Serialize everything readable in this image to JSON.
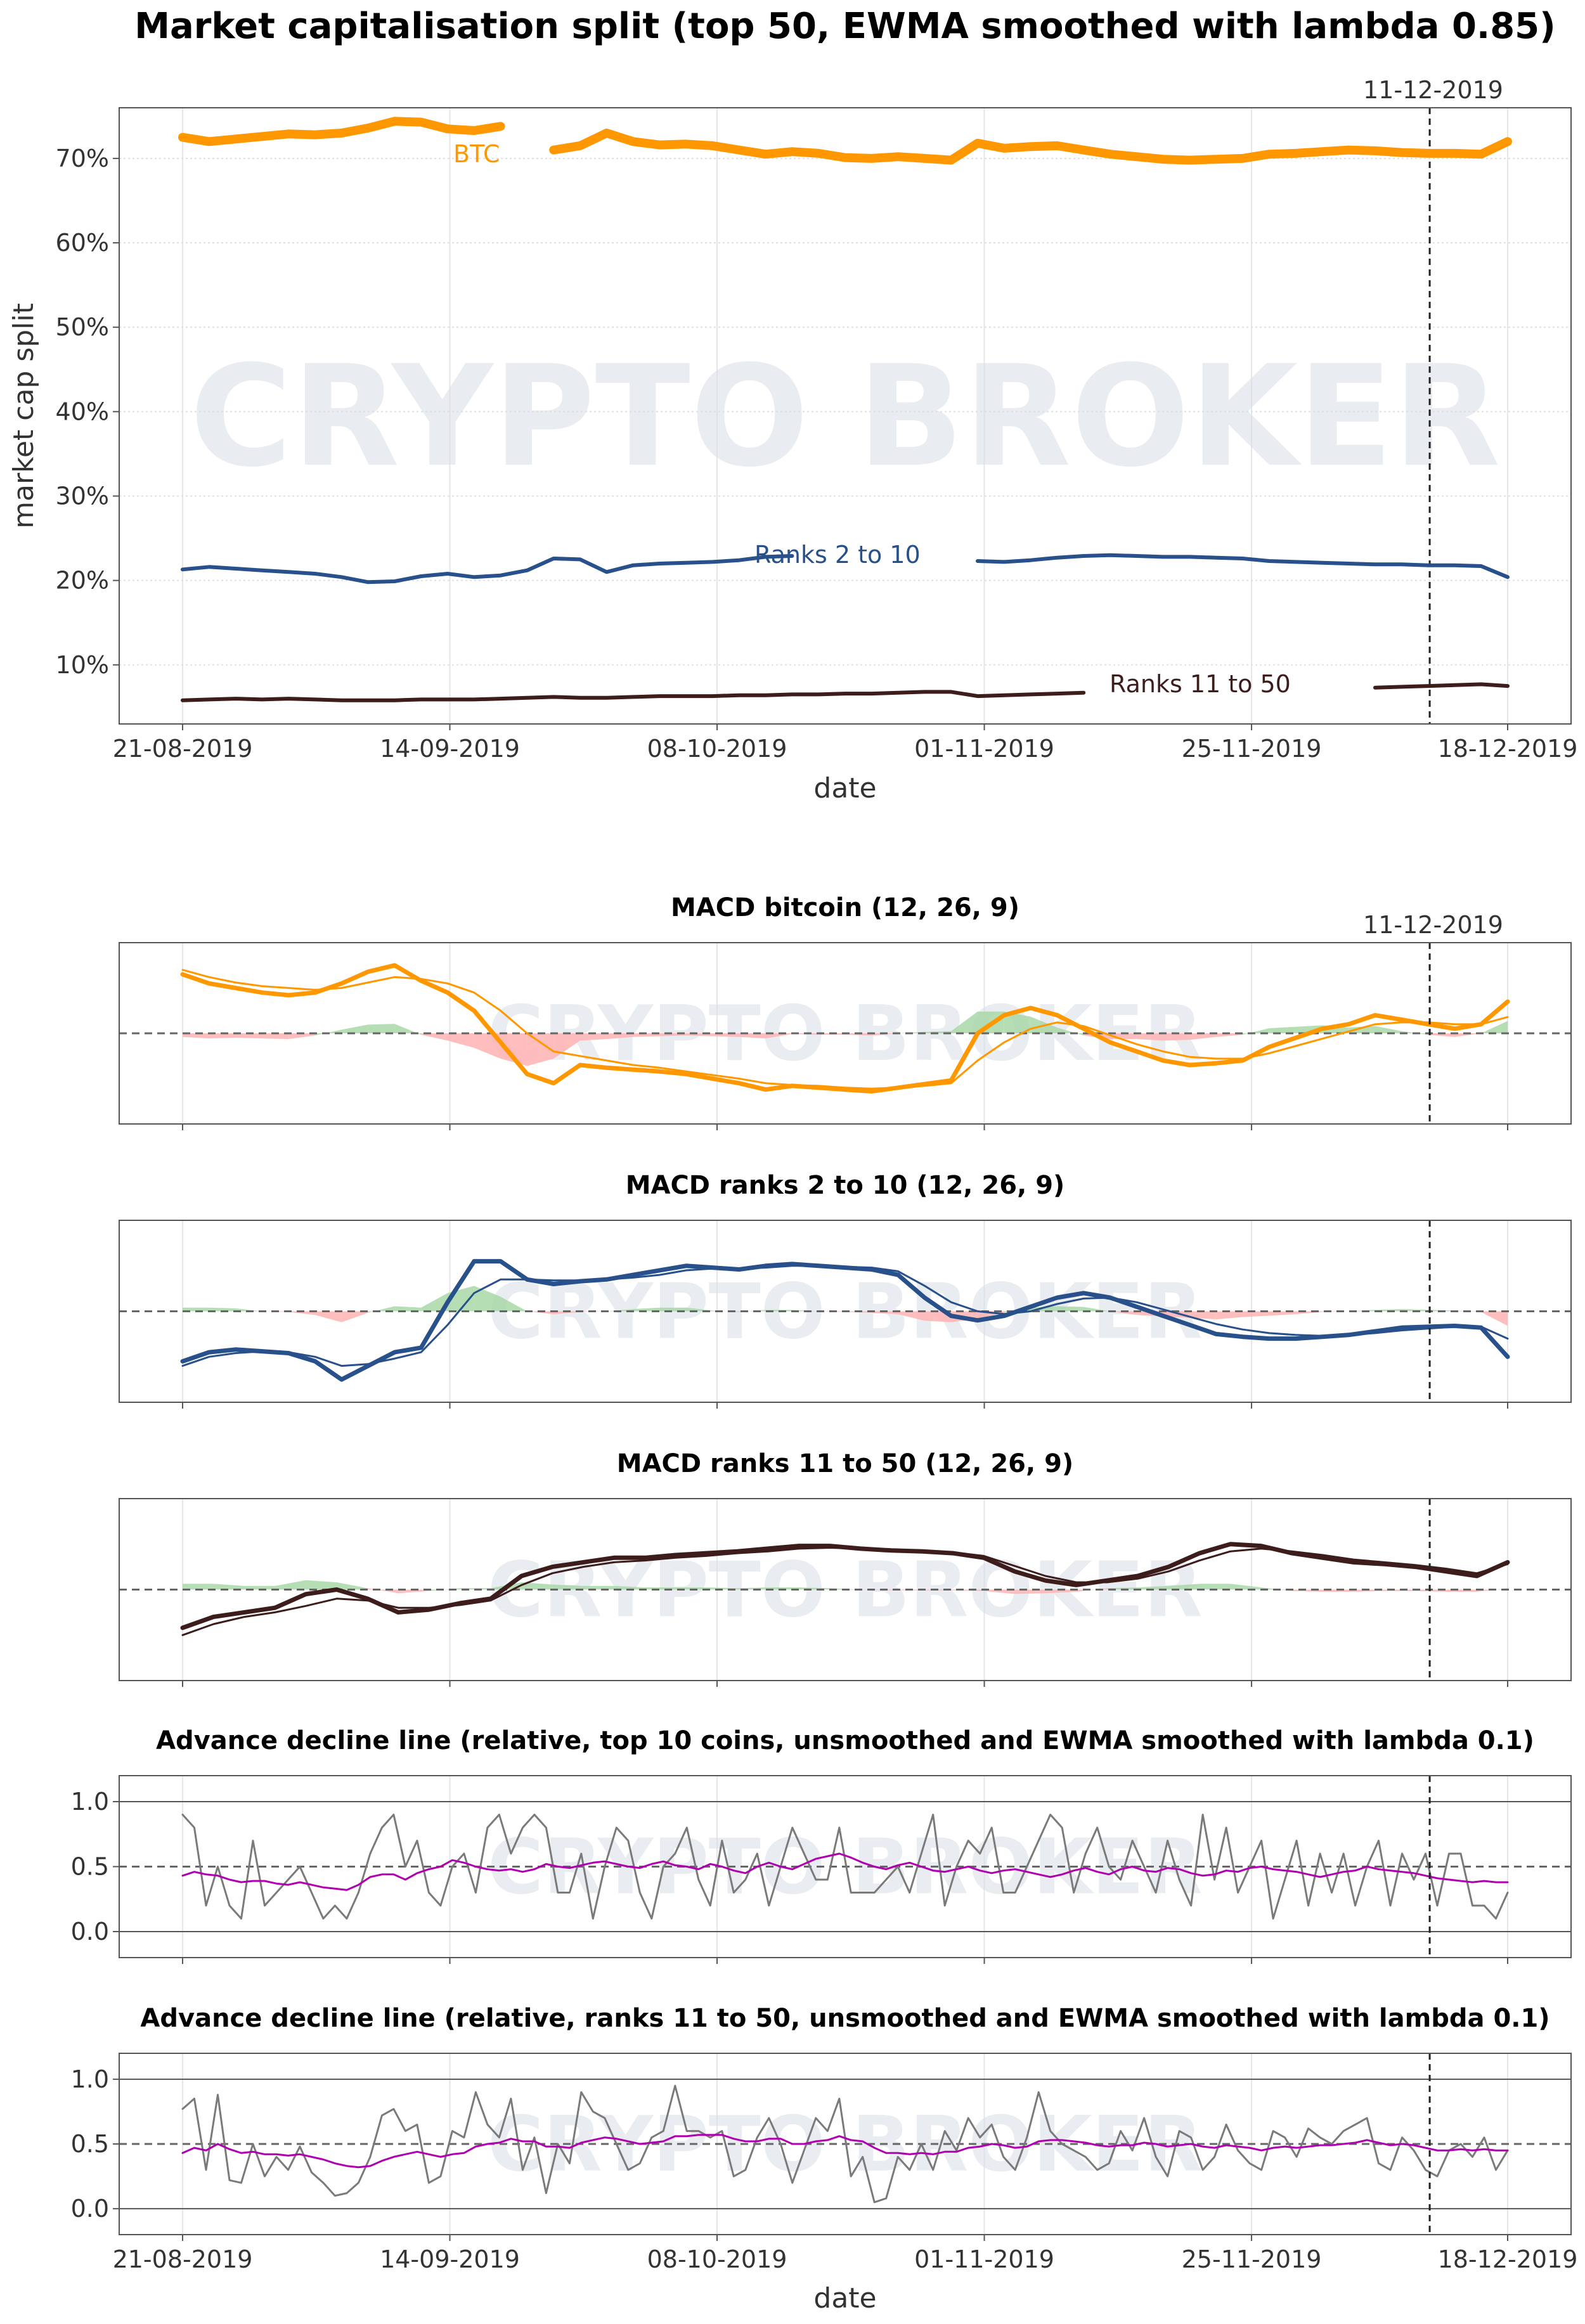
{
  "figure": {
    "watermark": "CRYPTO BROKER",
    "marker_date_label": "11-12-2019",
    "colors": {
      "btc": "#ff9800",
      "ranks_2_10": "#28508a",
      "ranks_11_50": "#3d1c1c",
      "adl_raw": "#7a7a7a",
      "adl_ewma": "#b000b0",
      "hist_pos": "#a8d8a8",
      "hist_neg": "#ffb3b3"
    }
  },
  "chart_data": [
    {
      "type": "line",
      "title": "Market capitalisation split (top 50, EWMA smoothed with lambda 0.85)",
      "xlabel": "date",
      "ylabel": "market cap split",
      "x_start": "21-08-2019",
      "x_end": "18-12-2019",
      "x_ticks": [
        "21-08-2019",
        "14-09-2019",
        "08-10-2019",
        "01-11-2019",
        "25-11-2019",
        "18-12-2019"
      ],
      "y_ticks": [
        "10%",
        "20%",
        "30%",
        "40%",
        "50%",
        "60%",
        "70%"
      ],
      "ylim": [
        3,
        76
      ],
      "marker_date": "11-12-2019",
      "series": [
        {
          "name": "BTC",
          "key": "btc",
          "values": [
            72.5,
            72.0,
            72.3,
            72.6,
            72.9,
            72.8,
            73.0,
            73.6,
            74.4,
            74.3,
            73.5,
            73.3,
            73.8,
            73.4,
            71.0,
            71.5,
            73.0,
            72.0,
            71.6,
            71.7,
            71.5,
            71.0,
            70.5,
            70.8,
            70.6,
            70.1,
            70.0,
            70.2,
            70.0,
            69.8,
            71.8,
            71.2,
            71.4,
            71.5,
            71.0,
            70.5,
            70.2,
            69.9,
            69.8,
            69.9,
            70.0,
            70.5,
            70.6,
            70.8,
            71.0,
            70.9,
            70.7,
            70.6,
            70.6,
            70.5,
            72.0
          ]
        },
        {
          "name": "Ranks 2 to 10",
          "key": "ranks_2_10",
          "values": [
            21.3,
            21.6,
            21.4,
            21.2,
            21.0,
            20.8,
            20.4,
            19.8,
            19.9,
            20.5,
            20.8,
            20.4,
            20.6,
            21.2,
            22.6,
            22.5,
            21.0,
            21.8,
            22.0,
            22.1,
            22.2,
            22.4,
            22.8,
            22.9,
            22.7,
            22.6,
            22.5,
            22.3,
            22.2,
            22.0,
            22.3,
            22.2,
            22.4,
            22.7,
            22.9,
            23.0,
            22.9,
            22.8,
            22.8,
            22.7,
            22.6,
            22.3,
            22.2,
            22.1,
            22.0,
            21.9,
            21.9,
            21.8,
            21.8,
            21.7,
            20.4
          ]
        },
        {
          "name": "Ranks 11 to 50",
          "key": "ranks_11_50",
          "values": [
            5.8,
            5.9,
            6.0,
            5.9,
            6.0,
            5.9,
            5.8,
            5.8,
            5.8,
            5.9,
            5.9,
            5.9,
            6.0,
            6.1,
            6.2,
            6.1,
            6.1,
            6.2,
            6.3,
            6.3,
            6.3,
            6.4,
            6.4,
            6.5,
            6.5,
            6.6,
            6.6,
            6.7,
            6.8,
            6.8,
            6.3,
            6.4,
            6.5,
            6.6,
            6.7,
            6.8,
            6.9,
            7.0,
            7.1,
            7.1,
            7.2,
            7.2,
            7.3,
            7.3,
            7.3,
            7.3,
            7.4,
            7.5,
            7.6,
            7.7,
            7.5
          ]
        }
      ]
    },
    {
      "type": "line",
      "title": "MACD bitcoin (12, 26, 9)",
      "marker_date": "11-12-2019",
      "ylim": [
        -1.0,
        1.0
      ],
      "series": [
        {
          "name": "",
          "role": "macd",
          "values": [
            0.65,
            0.55,
            0.5,
            0.45,
            0.42,
            0.45,
            0.55,
            0.68,
            0.75,
            0.58,
            0.45,
            0.25,
            -0.1,
            -0.45,
            -0.55,
            -0.35,
            -0.38,
            -0.4,
            -0.42,
            -0.45,
            -0.5,
            -0.55,
            -0.62,
            -0.58,
            -0.6,
            -0.62,
            -0.64,
            -0.6,
            -0.56,
            -0.52,
            0.0,
            0.2,
            0.28,
            0.2,
            0.05,
            -0.1,
            -0.2,
            -0.3,
            -0.35,
            -0.33,
            -0.3,
            -0.15,
            -0.05,
            0.05,
            0.1,
            0.2,
            0.15,
            0.1,
            0.05,
            0.1,
            0.35
          ]
        },
        {
          "name": "",
          "role": "signal",
          "values": [
            0.7,
            0.62,
            0.56,
            0.52,
            0.5,
            0.48,
            0.5,
            0.56,
            0.62,
            0.6,
            0.55,
            0.45,
            0.25,
            0.0,
            -0.2,
            -0.25,
            -0.3,
            -0.35,
            -0.38,
            -0.42,
            -0.46,
            -0.5,
            -0.55,
            -0.57,
            -0.58,
            -0.6,
            -0.61,
            -0.6,
            -0.58,
            -0.55,
            -0.3,
            -0.1,
            0.05,
            0.12,
            0.08,
            -0.02,
            -0.12,
            -0.2,
            -0.26,
            -0.28,
            -0.28,
            -0.22,
            -0.14,
            -0.06,
            0.02,
            0.1,
            0.12,
            0.12,
            0.1,
            0.1,
            0.18
          ]
        }
      ]
    },
    {
      "type": "line",
      "title": "MACD ranks 2 to 10 (12, 26, 9)",
      "marker_date": "11-12-2019",
      "ylim": [
        -1.0,
        1.0
      ],
      "series": [
        {
          "name": "",
          "role": "macd",
          "values": [
            -0.55,
            -0.45,
            -0.42,
            -0.44,
            -0.46,
            -0.55,
            -0.75,
            -0.6,
            -0.45,
            -0.4,
            0.1,
            0.55,
            0.55,
            0.35,
            0.3,
            0.33,
            0.35,
            0.4,
            0.45,
            0.5,
            0.48,
            0.46,
            0.5,
            0.52,
            0.5,
            0.48,
            0.46,
            0.4,
            0.15,
            -0.05,
            -0.1,
            -0.05,
            0.05,
            0.15,
            0.2,
            0.15,
            0.05,
            -0.05,
            -0.15,
            -0.25,
            -0.28,
            -0.3,
            -0.3,
            -0.28,
            -0.26,
            -0.22,
            -0.18,
            -0.17,
            -0.16,
            -0.18,
            -0.5
          ]
        },
        {
          "name": "",
          "role": "signal",
          "values": [
            -0.6,
            -0.5,
            -0.46,
            -0.44,
            -0.45,
            -0.5,
            -0.6,
            -0.58,
            -0.52,
            -0.45,
            -0.15,
            0.2,
            0.35,
            0.35,
            0.34,
            0.34,
            0.35,
            0.37,
            0.4,
            0.45,
            0.47,
            0.47,
            0.48,
            0.5,
            0.5,
            0.49,
            0.48,
            0.44,
            0.28,
            0.1,
            0.0,
            -0.03,
            0.0,
            0.08,
            0.14,
            0.15,
            0.1,
            0.02,
            -0.06,
            -0.14,
            -0.2,
            -0.24,
            -0.26,
            -0.27,
            -0.26,
            -0.24,
            -0.21,
            -0.19,
            -0.17,
            -0.17,
            -0.3
          ]
        }
      ]
    },
    {
      "type": "line",
      "title": "MACD ranks 11 to 50 (12, 26, 9)",
      "marker_date": "11-12-2019",
      "ylim": [
        -1.0,
        1.0
      ],
      "series": [
        {
          "name": "",
          "role": "macd",
          "values": [
            -0.42,
            -0.3,
            -0.25,
            -0.2,
            -0.05,
            0.0,
            -0.1,
            -0.25,
            -0.22,
            -0.15,
            -0.1,
            0.15,
            0.25,
            0.3,
            0.35,
            0.35,
            0.38,
            0.4,
            0.42,
            0.45,
            0.48,
            0.48,
            0.45,
            0.43,
            0.42,
            0.4,
            0.35,
            0.2,
            0.1,
            0.05,
            0.1,
            0.15,
            0.25,
            0.4,
            0.5,
            0.48,
            0.4,
            0.35,
            0.3,
            0.28,
            0.25,
            0.2,
            0.15,
            0.3
          ]
        },
        {
          "name": "",
          "role": "signal",
          "values": [
            -0.5,
            -0.38,
            -0.3,
            -0.25,
            -0.18,
            -0.1,
            -0.12,
            -0.2,
            -0.2,
            -0.17,
            -0.12,
            0.05,
            0.18,
            0.25,
            0.3,
            0.32,
            0.35,
            0.37,
            0.4,
            0.42,
            0.45,
            0.46,
            0.45,
            0.44,
            0.43,
            0.41,
            0.37,
            0.26,
            0.15,
            0.08,
            0.08,
            0.12,
            0.2,
            0.32,
            0.42,
            0.45,
            0.42,
            0.38,
            0.33,
            0.3,
            0.27,
            0.23,
            0.18,
            0.28
          ]
        }
      ]
    },
    {
      "type": "line",
      "title": "Advance decline line (relative, top 10 coins, unsmoothed and EWMA smoothed with lambda 0.1)",
      "marker_date": "11-12-2019",
      "ylim": [
        -0.2,
        1.2
      ],
      "y_ticks": [
        "0.0",
        "0.5",
        "1.0"
      ],
      "series": [
        {
          "name": "",
          "role": "raw",
          "values": [
            0.9,
            0.8,
            0.2,
            0.5,
            0.2,
            0.1,
            0.7,
            0.2,
            0.3,
            0.4,
            0.5,
            0.3,
            0.1,
            0.2,
            0.1,
            0.3,
            0.6,
            0.8,
            0.9,
            0.5,
            0.7,
            0.3,
            0.2,
            0.5,
            0.6,
            0.3,
            0.8,
            0.9,
            0.6,
            0.8,
            0.9,
            0.8,
            0.3,
            0.3,
            0.6,
            0.1,
            0.5,
            0.8,
            0.7,
            0.3,
            0.1,
            0.5,
            0.6,
            0.8,
            0.4,
            0.2,
            0.7,
            0.3,
            0.4,
            0.6,
            0.2,
            0.5,
            0.8,
            0.6,
            0.4,
            0.4,
            0.8,
            0.3,
            0.3,
            0.3,
            0.4,
            0.5,
            0.3,
            0.6,
            0.9,
            0.2,
            0.5,
            0.7,
            0.6,
            0.8,
            0.3,
            0.3,
            0.5,
            0.7,
            0.9,
            0.8,
            0.3,
            0.6,
            0.8,
            0.5,
            0.4,
            0.7,
            0.5,
            0.3,
            0.7,
            0.4,
            0.2,
            0.9,
            0.4,
            0.8,
            0.3,
            0.5,
            0.7,
            0.1,
            0.4,
            0.7,
            0.2,
            0.6,
            0.3,
            0.6,
            0.2,
            0.5,
            0.7,
            0.2,
            0.6,
            0.4,
            0.6,
            0.2,
            0.6,
            0.6,
            0.2,
            0.2,
            0.1,
            0.3
          ]
        },
        {
          "name": "",
          "role": "ewma",
          "values": [
            0.43,
            0.46,
            0.44,
            0.43,
            0.4,
            0.38,
            0.39,
            0.39,
            0.37,
            0.36,
            0.38,
            0.36,
            0.34,
            0.33,
            0.32,
            0.36,
            0.42,
            0.44,
            0.44,
            0.4,
            0.45,
            0.48,
            0.5,
            0.55,
            0.53,
            0.5,
            0.48,
            0.47,
            0.48,
            0.46,
            0.48,
            0.52,
            0.5,
            0.49,
            0.51,
            0.53,
            0.54,
            0.52,
            0.5,
            0.49,
            0.52,
            0.54,
            0.51,
            0.5,
            0.48,
            0.52,
            0.5,
            0.47,
            0.45,
            0.5,
            0.53,
            0.5,
            0.48,
            0.52,
            0.56,
            0.58,
            0.6,
            0.57,
            0.53,
            0.5,
            0.48,
            0.51,
            0.53,
            0.5,
            0.47,
            0.46,
            0.48,
            0.5,
            0.47,
            0.45,
            0.47,
            0.48,
            0.46,
            0.44,
            0.42,
            0.44,
            0.47,
            0.49,
            0.46,
            0.44,
            0.48,
            0.5,
            0.47,
            0.46,
            0.49,
            0.48,
            0.45,
            0.43,
            0.44,
            0.47,
            0.46,
            0.49,
            0.5,
            0.48,
            0.47,
            0.46,
            0.44,
            0.42,
            0.44,
            0.46,
            0.47,
            0.5,
            0.48,
            0.47,
            0.46,
            0.45,
            0.43,
            0.41,
            0.4,
            0.39,
            0.38,
            0.39,
            0.38,
            0.38
          ]
        }
      ]
    },
    {
      "type": "line",
      "title": "Advance decline line (relative, ranks 11 to 50, unsmoothed and EWMA smoothed with lambda 0.1)",
      "xlabel": "date",
      "x_ticks": [
        "21-08-2019",
        "14-09-2019",
        "08-10-2019",
        "01-11-2019",
        "25-11-2019",
        "18-12-2019"
      ],
      "marker_date": "11-12-2019",
      "ylim": [
        -0.2,
        1.2
      ],
      "y_ticks": [
        "0.0",
        "0.5",
        "1.0"
      ],
      "series": [
        {
          "name": "",
          "role": "raw",
          "values": [
            0.77,
            0.85,
            0.3,
            0.88,
            0.22,
            0.2,
            0.5,
            0.25,
            0.4,
            0.3,
            0.48,
            0.28,
            0.2,
            0.1,
            0.12,
            0.2,
            0.4,
            0.72,
            0.77,
            0.6,
            0.65,
            0.2,
            0.25,
            0.6,
            0.55,
            0.9,
            0.65,
            0.55,
            0.85,
            0.3,
            0.55,
            0.12,
            0.5,
            0.35,
            0.9,
            0.75,
            0.7,
            0.5,
            0.3,
            0.35,
            0.55,
            0.6,
            0.95,
            0.6,
            0.6,
            0.55,
            0.6,
            0.25,
            0.3,
            0.55,
            0.7,
            0.5,
            0.2,
            0.45,
            0.7,
            0.6,
            0.85,
            0.25,
            0.4,
            0.05,
            0.08,
            0.4,
            0.3,
            0.5,
            0.3,
            0.6,
            0.45,
            0.7,
            0.55,
            0.65,
            0.4,
            0.3,
            0.55,
            0.9,
            0.6,
            0.5,
            0.45,
            0.4,
            0.3,
            0.35,
            0.6,
            0.45,
            0.7,
            0.4,
            0.25,
            0.6,
            0.55,
            0.3,
            0.4,
            0.65,
            0.45,
            0.35,
            0.3,
            0.6,
            0.55,
            0.4,
            0.62,
            0.55,
            0.5,
            0.6,
            0.65,
            0.7,
            0.35,
            0.3,
            0.55,
            0.45,
            0.3,
            0.25,
            0.45,
            0.5,
            0.4,
            0.55,
            0.3,
            0.45
          ]
        },
        {
          "name": "",
          "role": "ewma",
          "values": [
            0.43,
            0.47,
            0.45,
            0.5,
            0.46,
            0.43,
            0.44,
            0.42,
            0.42,
            0.41,
            0.42,
            0.4,
            0.38,
            0.35,
            0.33,
            0.32,
            0.33,
            0.37,
            0.4,
            0.42,
            0.44,
            0.42,
            0.4,
            0.42,
            0.43,
            0.48,
            0.5,
            0.51,
            0.54,
            0.52,
            0.52,
            0.48,
            0.48,
            0.47,
            0.51,
            0.53,
            0.55,
            0.54,
            0.52,
            0.5,
            0.51,
            0.52,
            0.56,
            0.56,
            0.57,
            0.57,
            0.57,
            0.54,
            0.52,
            0.52,
            0.54,
            0.54,
            0.5,
            0.5,
            0.52,
            0.53,
            0.56,
            0.53,
            0.52,
            0.47,
            0.43,
            0.43,
            0.42,
            0.43,
            0.42,
            0.44,
            0.44,
            0.47,
            0.48,
            0.5,
            0.49,
            0.47,
            0.48,
            0.52,
            0.53,
            0.53,
            0.52,
            0.51,
            0.49,
            0.48,
            0.49,
            0.49,
            0.51,
            0.5,
            0.48,
            0.49,
            0.5,
            0.48,
            0.47,
            0.49,
            0.48,
            0.47,
            0.45,
            0.47,
            0.48,
            0.47,
            0.48,
            0.49,
            0.49,
            0.5,
            0.51,
            0.53,
            0.51,
            0.49,
            0.5,
            0.49,
            0.47,
            0.45,
            0.45,
            0.46,
            0.45,
            0.46,
            0.45,
            0.45
          ]
        }
      ]
    }
  ]
}
